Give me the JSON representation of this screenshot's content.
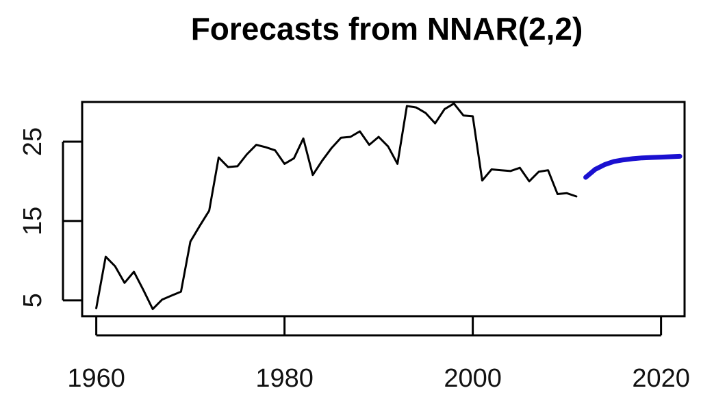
{
  "chart_data": {
    "type": "line",
    "title": "Forecasts from NNAR(2,2)",
    "xlabel": "",
    "ylabel": "",
    "xlim": [
      1958.5,
      2022.5
    ],
    "ylim": [
      3,
      30
    ],
    "x_ticks": [
      1960,
      1980,
      2000,
      2020
    ],
    "y_ticks": [
      5,
      15,
      25
    ],
    "grid": false,
    "colors": {
      "observed": "#000000",
      "forecast": "#1a10d0"
    },
    "series": [
      {
        "x": [
          1960,
          1961,
          1962,
          1963,
          1964,
          1965,
          1966,
          1967,
          1968,
          1969,
          1970,
          1971,
          1972,
          1973,
          1974,
          1975,
          1976,
          1977,
          1978,
          1979,
          1980,
          1981,
          1982,
          1983,
          1984,
          1985,
          1986,
          1987,
          1988,
          1989,
          1990,
          1991,
          1992,
          1993,
          1994,
          1995,
          1996,
          1997,
          1998,
          1999,
          2000,
          2001,
          2002,
          2003,
          2004,
          2005,
          2006,
          2007,
          2008,
          2009,
          2010,
          2011
        ],
        "values": [
          4.0,
          10.5,
          9.3,
          7.2,
          8.6,
          6.3,
          3.9,
          5.1,
          5.6,
          6.1,
          12.4,
          14.4,
          16.3,
          23.0,
          21.8,
          21.9,
          23.4,
          24.6,
          24.3,
          23.9,
          22.2,
          22.9,
          25.4,
          20.8,
          22.6,
          24.2,
          25.5,
          25.6,
          26.3,
          24.6,
          25.6,
          24.4,
          22.2,
          29.5,
          29.3,
          28.6,
          27.3,
          29.1,
          29.8,
          28.3,
          28.2,
          20.1,
          21.5,
          21.4,
          21.3,
          21.7,
          20.0,
          21.2,
          21.4,
          18.4,
          18.5,
          18.1
        ]
      },
      {
        "x": [
          2012,
          2013,
          2014,
          2015,
          2016,
          2017,
          2018,
          2019,
          2020,
          2021,
          2022
        ],
        "values": [
          20.5,
          21.5,
          22.1,
          22.5,
          22.7,
          22.85,
          22.95,
          23.0,
          23.05,
          23.1,
          23.15
        ]
      }
    ]
  }
}
